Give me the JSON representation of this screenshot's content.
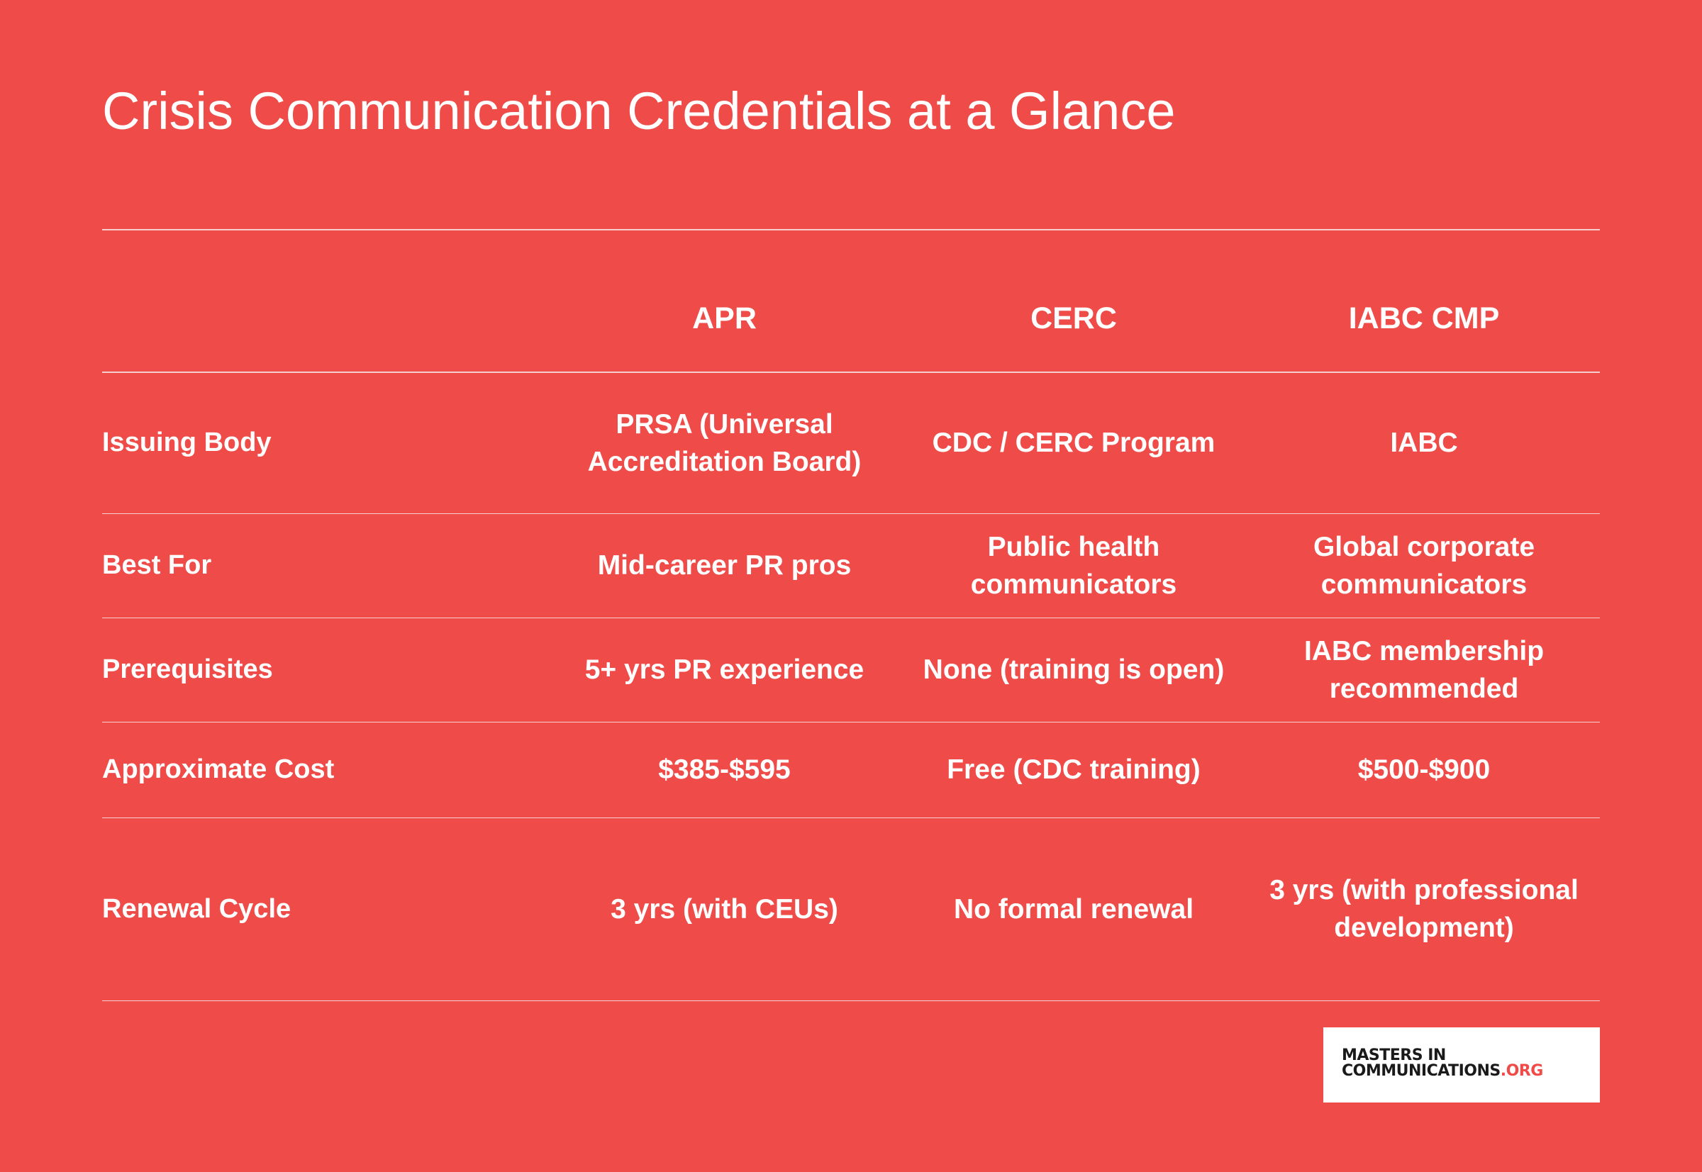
{
  "header": {
    "title": "Crisis Communication Credentials at a Glance"
  },
  "table": {
    "columns": [
      "APR",
      "CERC",
      "IABC CMP"
    ],
    "rows": [
      [
        "Issuing Body",
        "PRSA (Universal Accreditation Board)",
        "CDC / CERC Program",
        "IABC"
      ],
      [
        "Best For",
        "Mid-career PR pros",
        "Public health communicators",
        "Global corporate communicators"
      ],
      [
        "Prerequisites",
        "5+ yrs PR experience",
        "None (training is open)",
        "IABC membership recommended"
      ],
      [
        "Approximate Cost",
        "$385-$595",
        "Free (CDC training)",
        "$500-$900"
      ],
      [
        "Renewal Cycle",
        "3 yrs (with CEUs)",
        "No formal renewal",
        "3 yrs (with professional development)"
      ]
    ]
  },
  "logo": {
    "line1": "MASTERS IN",
    "line2": "COMMUNICATIONS",
    "suffix": ".ORG"
  }
}
